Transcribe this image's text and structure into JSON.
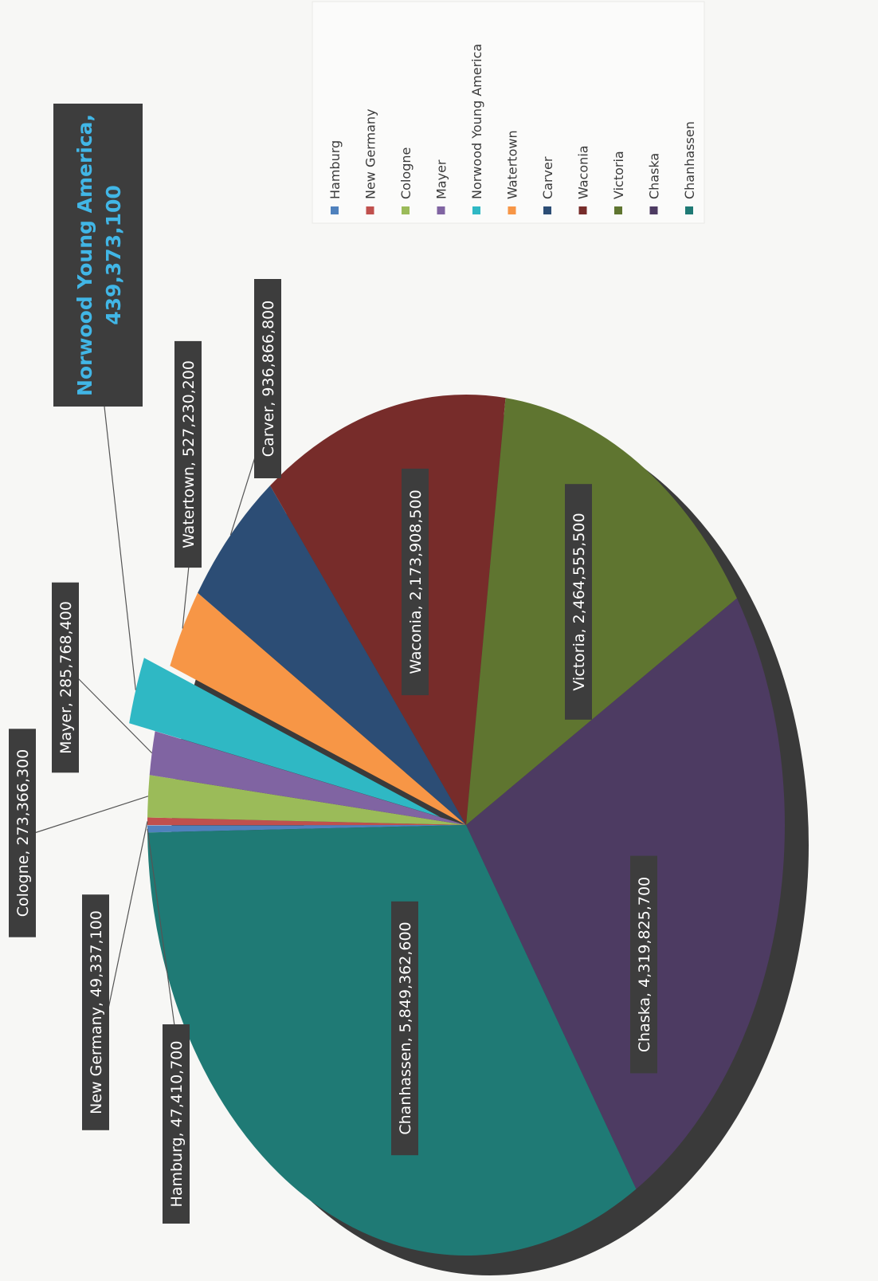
{
  "colors": {
    "Hamburg": "#4f81bd",
    "New Germany": "#c0504d",
    "Cologne": "#9bbb59",
    "Mayer": "#8064a2",
    "Norwood Young America": "#2fb8c4",
    "Watertown": "#f79646",
    "Carver": "#2c4d75",
    "Waconia": "#772c2a",
    "Victoria": "#5f7530",
    "Chaska": "#4d3b62",
    "Chanhassen": "#1f7a75",
    "callout_text": "#41b6e6"
  },
  "chart_data": {
    "type": "pie",
    "style": "3d-exploded",
    "legend_position": "right",
    "orientation": "rotated-90-clockwise",
    "slices": [
      {
        "name": "Hamburg",
        "value": 47410700,
        "label": "Hamburg,  47,410,700",
        "explode": false
      },
      {
        "name": "New Germany",
        "value": 49337100,
        "label": "New Germany,  49,337,100",
        "explode": false
      },
      {
        "name": "Cologne",
        "value": 273366300,
        "label": "Cologne,  273,366,300",
        "explode": false
      },
      {
        "name": "Mayer",
        "value": 285768400,
        "label": "Mayer,  285,768,400",
        "explode": false
      },
      {
        "name": "Norwood Young America",
        "value": 439373100,
        "label": "Norwood Young America, 439,373,100",
        "label_lines": [
          "Norwood Young America,",
          "439,373,100"
        ],
        "explode": true
      },
      {
        "name": "Watertown",
        "value": 527230200,
        "label": "Watertown,  527,230,200",
        "explode": false
      },
      {
        "name": "Carver",
        "value": 936866800,
        "label": "Carver,  936,866,800",
        "explode": false
      },
      {
        "name": "Waconia",
        "value": 2173908500,
        "label": "Waconia,  2,173,908,500",
        "explode": false
      },
      {
        "name": "Victoria",
        "value": 2464555500,
        "label": "Victoria,  2,464,555,500",
        "explode": false
      },
      {
        "name": "Chaska",
        "value": 4319825700,
        "label": "Chaska,  4,319,825,700",
        "explode": false
      },
      {
        "name": "Chanhassen",
        "value": 5849362600,
        "label": "Chanhassen,  5,849,362,600",
        "explode": false
      }
    ],
    "legend": [
      "Hamburg",
      "New Germany",
      "Cologne",
      "Mayer",
      "Norwood Young America",
      "Watertown",
      "Carver",
      "Waconia",
      "Victoria",
      "Chaska",
      "Chanhassen"
    ]
  }
}
